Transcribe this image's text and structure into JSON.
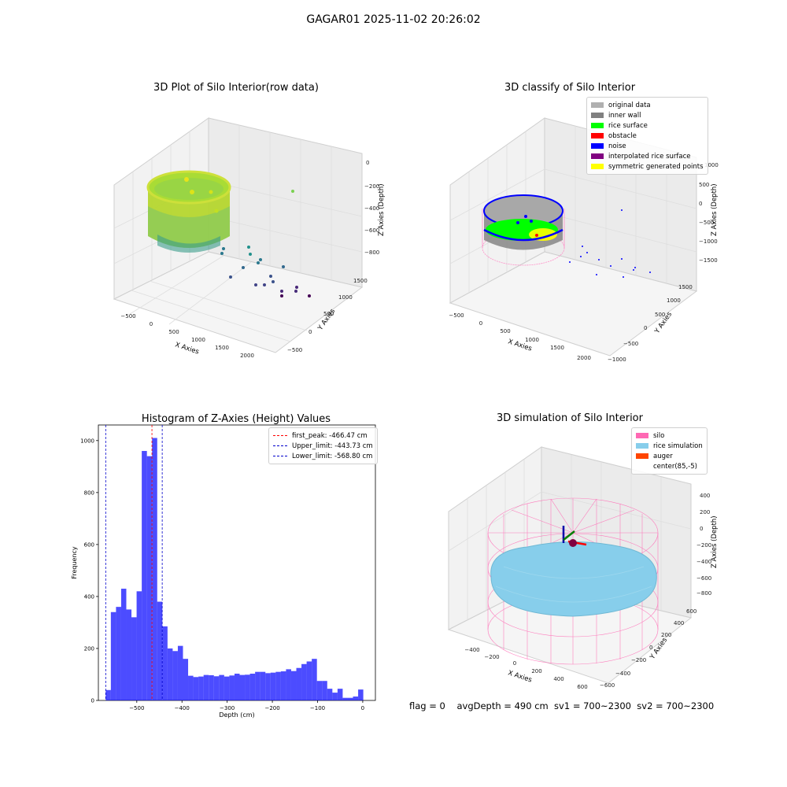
{
  "figure": {
    "suptitle": "GAGAR01 2025-11-02 20:26:02",
    "status_line": "flag = 0    avgDepth = 490 cm  sv1 = 700~2300  sv2 = 700~2300"
  },
  "panels": {
    "raw": {
      "title": "3D Plot of Silo Interior(row data)",
      "xlabel": "X Axies",
      "ylabel": "Y Axies",
      "zlabel": "Z Axies (Depth)",
      "x_ticks": [
        "−500",
        "0",
        "500",
        "1000",
        "1500",
        "2000"
      ],
      "y_ticks": [
        "−500",
        "0",
        "500",
        "1000",
        "1500"
      ],
      "z_ticks": [
        "0",
        "−200",
        "−400",
        "−600",
        "−800"
      ]
    },
    "classify": {
      "title": "3D classify of Silo Interior",
      "xlabel": "X Axies",
      "ylabel": "Y Axies",
      "zlabel": "Z Axies (Depth)",
      "x_ticks": [
        "−500",
        "0",
        "500",
        "1000",
        "1500",
        "2000"
      ],
      "y_ticks": [
        "−1000",
        "−500",
        "0",
        "500",
        "1000",
        "1500"
      ],
      "z_ticks": [
        "1000",
        "500",
        "0",
        "−500",
        "−1000",
        "−1500"
      ],
      "legend": [
        {
          "label": "original data",
          "color": "#b0b0b0"
        },
        {
          "label": "inner wall",
          "color": "#808080"
        },
        {
          "label": "rice surface",
          "color": "#00ff00"
        },
        {
          "label": "obstacle",
          "color": "#ff0000"
        },
        {
          "label": "noise",
          "color": "#0000ff"
        },
        {
          "label": "interpolated rice surface",
          "color": "#800080"
        },
        {
          "label": "symmetric generated points",
          "color": "#ffff00"
        }
      ]
    },
    "simulation": {
      "title": "3D simulation of Silo Interior",
      "xlabel": "X Axies",
      "ylabel": "Y Axies",
      "zlabel": "Z Axies (Depth)",
      "x_ticks": [
        "−400",
        "−200",
        "0",
        "200",
        "400",
        "600"
      ],
      "y_ticks": [
        "−600",
        "−400",
        "−200",
        "0",
        "200",
        "400",
        "600"
      ],
      "z_ticks": [
        "400",
        "200",
        "0",
        "−200",
        "−400",
        "−600",
        "−800"
      ],
      "legend": [
        {
          "label": "silo",
          "color": "#ff69b4"
        },
        {
          "label": "rice simulation",
          "color": "#87ceeb"
        },
        {
          "label": "auger",
          "color": "#ff4500"
        },
        {
          "label": "center(85,-5)",
          "color": ""
        }
      ]
    }
  },
  "chart_data": {
    "type": "bar",
    "title": "Histogram of Z-Axies (Height) Values",
    "xlabel": "Depth (cm)",
    "ylabel": "Frequency",
    "xlim": [
      -585,
      28
    ],
    "ylim": [
      0,
      1060
    ],
    "x_ticks": [
      -500,
      -400,
      -300,
      -200,
      -100,
      0
    ],
    "x_tick_labels": [
      "−500",
      "−400",
      "−300",
      "−200",
      "−100",
      "0"
    ],
    "y_ticks": [
      0,
      200,
      400,
      600,
      800,
      1000
    ],
    "bar_color": "#0000ff",
    "bin_width": 11.4,
    "bin_starts": [
      -568.8,
      -557.4,
      -546.0,
      -534.6,
      -523.2,
      -511.8,
      -500.4,
      -489.0,
      -477.6,
      -466.2,
      -454.8,
      -443.4,
      -432.0,
      -420.6,
      -409.2,
      -397.8,
      -386.4,
      -375.0,
      -363.6,
      -352.2,
      -340.8,
      -329.4,
      -318.0,
      -306.6,
      -295.2,
      -283.8,
      -272.4,
      -261.0,
      -249.6,
      -238.2,
      -226.8,
      -215.4,
      -204.0,
      -192.6,
      -181.2,
      -169.8,
      -158.4,
      -147.0,
      -135.6,
      -124.2,
      -112.8,
      -101.4,
      -90.0,
      -78.6,
      -67.2,
      -55.8,
      -44.4,
      -33.0,
      -21.6,
      -10.2
    ],
    "values": [
      40,
      340,
      360,
      430,
      350,
      320,
      420,
      960,
      940,
      1010,
      380,
      285,
      200,
      190,
      210,
      160,
      95,
      90,
      92,
      98,
      97,
      93,
      98,
      92,
      96,
      103,
      98,
      99,
      103,
      110,
      110,
      105,
      107,
      110,
      112,
      120,
      113,
      125,
      140,
      150,
      160,
      75,
      75,
      45,
      30,
      45,
      10,
      10,
      15,
      42
    ],
    "vlines": [
      {
        "label": "first_peak: -466.47 cm",
        "x": -466.47,
        "color": "#ff0000"
      },
      {
        "label": "Upper_limit: -443.73 cm",
        "x": -443.73,
        "color": "#0000cc"
      },
      {
        "label": "Lower_limit: -568.80 cm",
        "x": -568.8,
        "color": "#0000cc"
      }
    ],
    "legend_position": "top-right"
  }
}
